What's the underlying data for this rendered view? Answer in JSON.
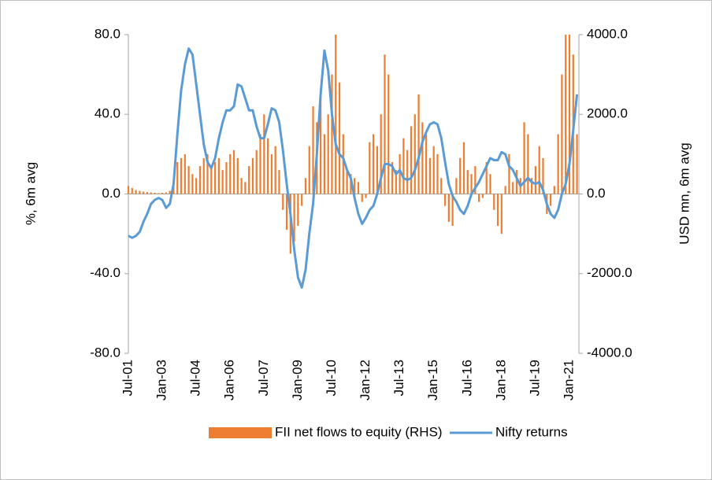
{
  "chart_data": {
    "type": "bar-line",
    "y_axis_label": "%, 6m avg",
    "y2_axis_label": "USD mn, 6m avg",
    "categories": [
      "Jul-01",
      null,
      null,
      null,
      null,
      null,
      null,
      null,
      null,
      "Jan-03",
      null,
      null,
      null,
      null,
      null,
      null,
      null,
      null,
      "Jul-04",
      null,
      null,
      null,
      null,
      null,
      null,
      null,
      null,
      "Jan-06",
      null,
      null,
      null,
      null,
      null,
      null,
      null,
      null,
      "Jul-07",
      null,
      null,
      null,
      null,
      null,
      null,
      null,
      null,
      "Jan-09",
      null,
      null,
      null,
      null,
      null,
      null,
      null,
      null,
      "Jul-10",
      null,
      null,
      null,
      null,
      null,
      null,
      null,
      null,
      "Jan-12",
      null,
      null,
      null,
      null,
      null,
      null,
      null,
      null,
      "Jul-13",
      null,
      null,
      null,
      null,
      null,
      null,
      null,
      null,
      "Jan-15",
      null,
      null,
      null,
      null,
      null,
      null,
      null,
      null,
      "Jul-16",
      null,
      null,
      null,
      null,
      null,
      null,
      null,
      null,
      "Jan-18",
      null,
      null,
      null,
      null,
      null,
      null,
      null,
      null,
      "Jul-19",
      null,
      null,
      null,
      null,
      null,
      null,
      null,
      null,
      "Jan-21",
      null,
      null
    ],
    "series": [
      {
        "name": "FII net flows to equity (RHS)",
        "kind": "bar",
        "axis": "y2",
        "color": "#ed7d31",
        "values": [
          200,
          150,
          100,
          80,
          60,
          50,
          40,
          30,
          20,
          30,
          40,
          80,
          300,
          800,
          900,
          1000,
          700,
          500,
          400,
          700,
          900,
          1000,
          700,
          800,
          900,
          600,
          800,
          1000,
          1100,
          900,
          400,
          300,
          700,
          900,
          1100,
          1500,
          2000,
          1400,
          1000,
          1200,
          600,
          -400,
          -900,
          -1500,
          -1200,
          -800,
          -300,
          400,
          1200,
          2200,
          1800,
          2500,
          1500,
          2000,
          3000,
          4000,
          2800,
          1500,
          600,
          500,
          400,
          300,
          -200,
          -100,
          1300,
          1500,
          1200,
          2000,
          3500,
          3000,
          800,
          600,
          1000,
          1400,
          1100,
          1700,
          2000,
          2500,
          1800,
          1500,
          900,
          1200,
          1000,
          400,
          -300,
          -700,
          -800,
          400,
          900,
          1300,
          600,
          500,
          700,
          -200,
          -100,
          800,
          500,
          -400,
          -800,
          -1000,
          200,
          1000,
          300,
          600,
          400,
          1800,
          1500,
          400,
          700,
          1200,
          900,
          -500,
          -300,
          200,
          1500,
          3000,
          4000,
          4000,
          3500,
          1500
        ]
      },
      {
        "name": "Nifty returns",
        "kind": "line",
        "color": "#5b9bd5",
        "values": [
          -21,
          -22,
          -21,
          -19,
          -14,
          -10,
          -5,
          -3,
          -2,
          -3,
          -7,
          -5,
          5,
          30,
          52,
          65,
          73,
          70,
          55,
          40,
          25,
          16,
          13,
          18,
          28,
          36,
          42,
          42,
          44,
          55,
          54,
          48,
          42,
          42,
          34,
          28,
          28,
          35,
          43,
          42,
          36,
          22,
          5,
          -10,
          -28,
          -42,
          -47,
          -38,
          -20,
          -5,
          20,
          50,
          72,
          62,
          40,
          25,
          20,
          18,
          12,
          8,
          -2,
          -10,
          -15,
          -12,
          -8,
          -6,
          0,
          8,
          15,
          15,
          14,
          10,
          12,
          8,
          7,
          8,
          12,
          18,
          26,
          31,
          35,
          36,
          35,
          28,
          16,
          5,
          -1,
          -4,
          -8,
          -10,
          -6,
          0,
          3,
          6,
          10,
          14,
          18,
          17,
          17,
          21,
          20,
          14,
          12,
          8,
          4,
          6,
          8,
          6,
          5,
          6,
          2,
          -5,
          -10,
          -12,
          -8,
          0,
          5,
          15,
          32,
          50
        ]
      }
    ],
    "ylim": [
      -80,
      80
    ],
    "yticks": [
      {
        "value": -80,
        "label": "-80.0"
      },
      {
        "value": -40,
        "label": "-40.0"
      },
      {
        "value": 0,
        "label": "0.0"
      },
      {
        "value": 40,
        "label": "40.0"
      },
      {
        "value": 80,
        "label": "80.0"
      }
    ],
    "y2lim": [
      -4000,
      4000
    ],
    "y2ticks": [
      {
        "value": -4000,
        "label": "-4000.0"
      },
      {
        "value": -2000,
        "label": "-2000.0"
      },
      {
        "value": 0,
        "label": "0.0"
      },
      {
        "value": 2000,
        "label": "2000.0"
      },
      {
        "value": 4000,
        "label": "4000.0"
      }
    ],
    "legend": "bottom"
  }
}
